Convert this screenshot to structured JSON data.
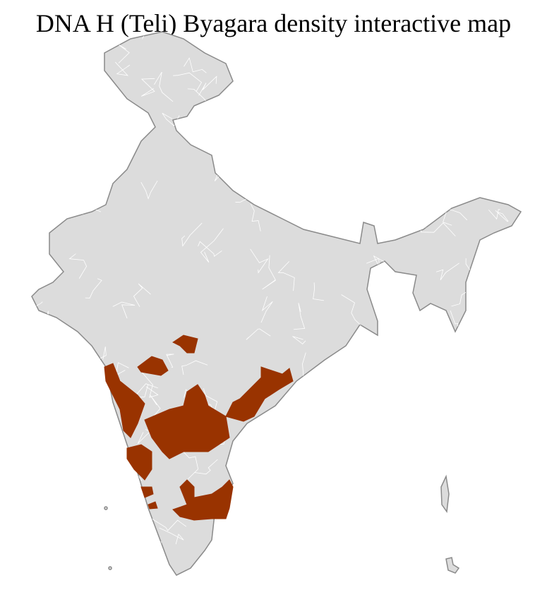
{
  "title": "DNA H (Teli) Byagara density interactive map",
  "colors": {
    "land": "#dcdcdc",
    "border": "#8a8a8a",
    "district_lines": "#ffffff",
    "highlight": "#993300"
  },
  "legend": null
}
